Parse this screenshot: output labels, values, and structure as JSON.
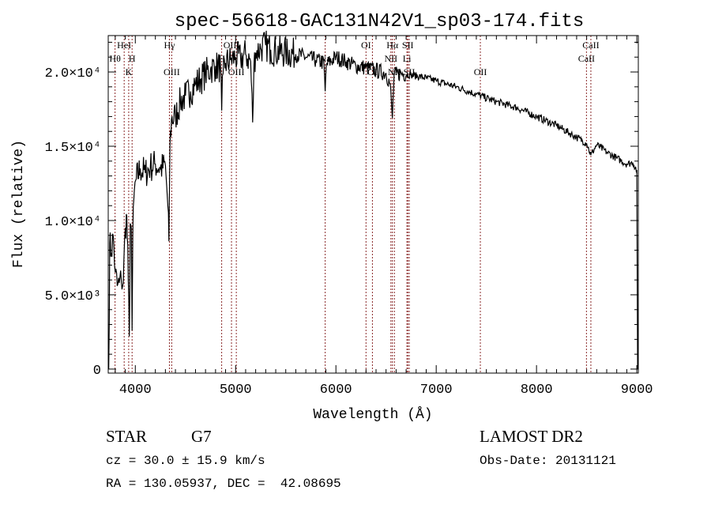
{
  "chart_data": {
    "type": "line",
    "title": "spec-56618-GAC131N42V1_sp03-174.fits",
    "xlabel": "Wavelength (Å)",
    "ylabel": "Flux (relative)",
    "xlim": [
      3730,
      9015
    ],
    "ylim": [
      -270,
      22450
    ],
    "xticks": [
      4000,
      5000,
      6000,
      7000,
      8000,
      9000
    ],
    "xtick_labels": [
      "4000",
      "5000",
      "6000",
      "7000",
      "8000",
      "9000"
    ],
    "yticks": [
      0,
      5000,
      10000,
      15000,
      20000
    ],
    "ytick_labels": [
      "0",
      "5.0×10³",
      "1.0×10⁴",
      "1.5×10⁴",
      "2.0×10⁴"
    ],
    "grid": false,
    "series": [
      {
        "name": "spectrum",
        "x": [
          3735,
          3745,
          3760,
          3780,
          3800,
          3820,
          3840,
          3860,
          3880,
          3900,
          3915,
          3930,
          3940,
          3950,
          3960,
          3968,
          3975,
          3990,
          4010,
          4050,
          4100,
          4150,
          4200,
          4250,
          4300,
          4320,
          4335,
          4345,
          4360,
          4400,
          4450,
          4500,
          4550,
          4600,
          4650,
          4700,
          4750,
          4800,
          4850,
          4861,
          4875,
          4900,
          4950,
          5000,
          5050,
          5100,
          5150,
          5170,
          5183,
          5200,
          5250,
          5300,
          5350,
          5400,
          5500,
          5600,
          5700,
          5800,
          5880,
          5893,
          5905,
          6000,
          6100,
          6200,
          6300,
          6400,
          6500,
          6540,
          6563,
          6580,
          6650,
          6750,
          6900,
          7000,
          7200,
          7400,
          7600,
          7800,
          8000,
          8200,
          8400,
          8500,
          8542,
          8600,
          8700,
          8800,
          8900,
          8960,
          9000,
          9008
        ],
        "y": [
          0,
          8500,
          7800,
          9000,
          6500,
          5600,
          5800,
          6000,
          5800,
          9500,
          10300,
          6000,
          2200,
          9800,
          9500,
          2600,
          9000,
          12000,
          12800,
          13500,
          13200,
          13600,
          13800,
          13500,
          13700,
          11500,
          8600,
          15000,
          16800,
          17000,
          18000,
          18400,
          18700,
          19200,
          19500,
          19900,
          20200,
          20400,
          20300,
          17400,
          19900,
          20600,
          20800,
          21000,
          20900,
          21200,
          20700,
          16600,
          20500,
          21300,
          21600,
          21800,
          21500,
          21400,
          21300,
          21200,
          21000,
          20800,
          20600,
          18700,
          20500,
          21000,
          20700,
          20400,
          20300,
          20100,
          19900,
          19200,
          16900,
          19800,
          19900,
          19800,
          19600,
          19400,
          19000,
          18500,
          18000,
          17600,
          17000,
          16400,
          15600,
          15200,
          14400,
          15100,
          14600,
          14200,
          13800,
          13900,
          13400,
          0
        ]
      }
    ],
    "spectral_lines": [
      {
        "name": "Hθ",
        "wavelength": 3798,
        "row": 2
      },
      {
        "name": "HeI",
        "wavelength": 3889,
        "row": 1
      },
      {
        "name": "K",
        "wavelength": 3934,
        "row": 3
      },
      {
        "name": "H",
        "wavelength": 3968,
        "row": 2
      },
      {
        "name": "Hγ",
        "wavelength": 4340,
        "row": 1
      },
      {
        "name": "OIII",
        "wavelength": 4363,
        "row": 3
      },
      {
        "name": "H",
        "wavelength": 4861,
        "row": 2
      },
      {
        "name": "OIII",
        "wavelength": 4959,
        "row": 1
      },
      {
        "name": "OIII",
        "wavelength": 5007,
        "row": 3
      },
      {
        "name": "Na",
        "wavelength": 5893,
        "row": 2
      },
      {
        "name": "OI",
        "wavelength": 6300,
        "row": 1
      },
      {
        "name": "OI",
        "wavelength": 6364,
        "row": 3
      },
      {
        "name": "NII",
        "wavelength": 6548,
        "row": 2
      },
      {
        "name": "Hα",
        "wavelength": 6563,
        "row": 1
      },
      {
        "name": "NII",
        "wavelength": 6583,
        "row": 3
      },
      {
        "name": "Li",
        "wavelength": 6708,
        "row": 2
      },
      {
        "name": "SII",
        "wavelength": 6717,
        "row": 1
      },
      {
        "name": "SII",
        "wavelength": 6731,
        "row": 3
      },
      {
        "name": "OII",
        "wavelength": 7440,
        "row": 3
      },
      {
        "name": "CaII",
        "wavelength": 8498,
        "row": 2
      },
      {
        "name": "CaII",
        "wavelength": 8542,
        "row": 1
      }
    ],
    "line_color": "#8b2a2a"
  },
  "info": {
    "class": "STAR",
    "subclass": "G7",
    "cz": "cz = 30.0 ± 15.9 km/s",
    "radec": "RA = 130.05937, DEC =  42.08695",
    "survey": "LAMOST DR2",
    "obs_date": "Obs-Date: 20131121"
  }
}
